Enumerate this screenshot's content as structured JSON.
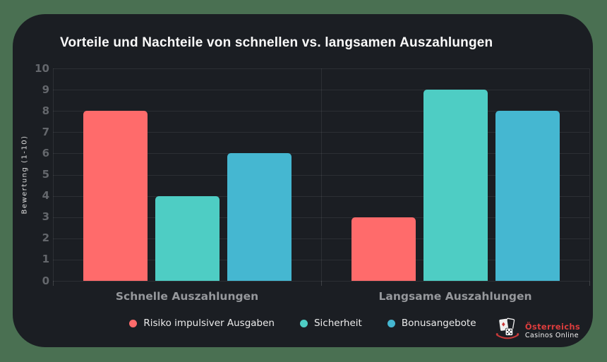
{
  "theme": {
    "page_background": "#4a7052",
    "panel_background": "#1b1e23",
    "grid_color": "rgba(255,255,255,0.08)",
    "tick_text_color": "#64676c",
    "category_text_color": "#96989c",
    "title_color": "#fafafa"
  },
  "chart_data": {
    "type": "bar",
    "title": "Vorteile und Nachteile von schnellen vs. langsamen Auszahlungen",
    "categories": [
      "Schnelle Auszahlungen",
      "Langsame Auszahlungen"
    ],
    "series": [
      {
        "name": "Risiko impulsiver Ausgaben",
        "color": "#ff6b6b",
        "values": [
          8,
          3
        ]
      },
      {
        "name": "Sicherheit",
        "color": "#4ecdc4",
        "values": [
          4,
          9
        ]
      },
      {
        "name": "Bonusangebote",
        "color": "#45b7d1",
        "values": [
          6,
          8
        ]
      }
    ],
    "xlabel": "",
    "ylabel": "Bewertung (1-10)",
    "ylim": [
      0,
      10
    ],
    "y_ticks": [
      0,
      1,
      2,
      3,
      4,
      5,
      6,
      7,
      8,
      9,
      10
    ],
    "grid": true,
    "legend_position": "bottom"
  },
  "logo": {
    "line1": "Österreichs",
    "line2": "Casinos Online"
  }
}
